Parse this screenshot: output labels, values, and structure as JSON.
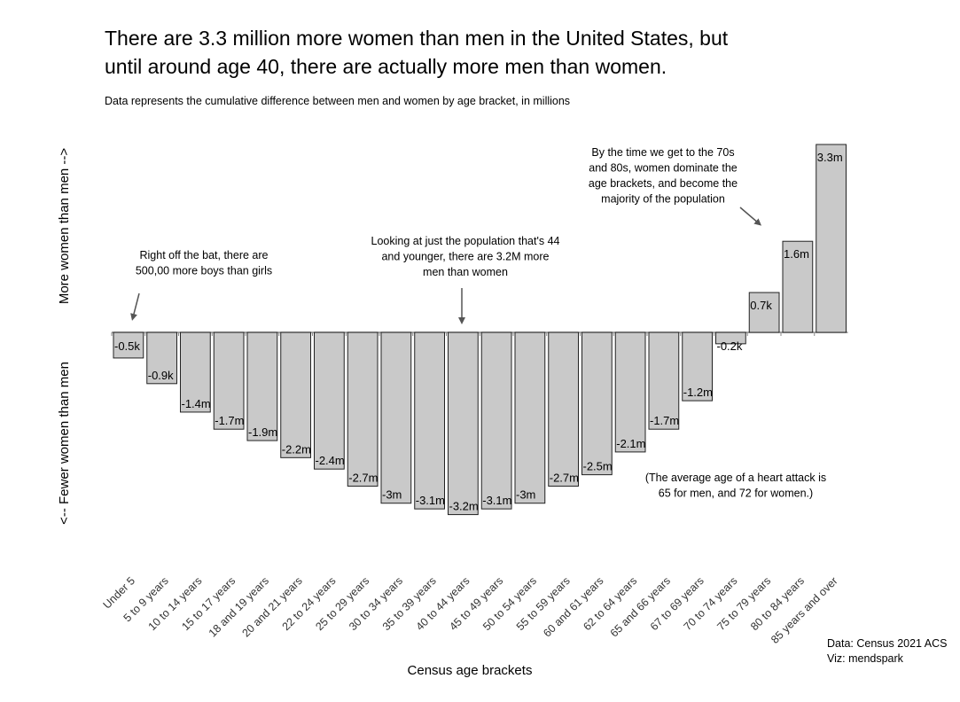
{
  "chart_data": {
    "type": "bar",
    "title_line1": "There are 3.3 million more women than men in the United States, but",
    "title_line2": "until around age 40, there are actually more men than women.",
    "subtitle": "Data represents the cumulative difference between men and women by age bracket, in millions",
    "xlabel": "Census age brackets",
    "ylabel_top": "More women than men -->",
    "ylabel_bottom": "<-- Fewer women than men",
    "ylim": [
      -3.3,
      3.3
    ],
    "grid": false,
    "bar_color": "#c9c9c9",
    "categories": [
      "Under 5",
      "5 to 9 years",
      "10 to 14 years",
      "15 to 17 years",
      "18 and 19 years",
      "20 and 21 years",
      "22 to 24 years",
      "25 to 29 years",
      "30 to 34 years",
      "35 to 39 years",
      "40 to 44 years",
      "45 to 49 years",
      "50 to 54 years",
      "55 to 59 years",
      "60 and 61 years",
      "62 to 64 years",
      "65 and 66 years",
      "67 to 69 years",
      "70 to 74 years",
      "75 to 79 years",
      "80 to 84 years",
      "85 years and over"
    ],
    "values": [
      -0.45,
      -0.9,
      -1.4,
      -1.7,
      -1.9,
      -2.2,
      -2.4,
      -2.7,
      -3.0,
      -3.1,
      -3.2,
      -3.1,
      -3.0,
      -2.7,
      -2.5,
      -2.1,
      -1.7,
      -1.2,
      -0.2,
      0.7,
      1.6,
      3.3
    ],
    "data_labels": [
      "-0.5k",
      "-0.9k",
      "-1.4m",
      "-1.7m",
      "-1.9m",
      "-2.2m",
      "-2.4m",
      "-2.7m",
      "-3m",
      "-3.1m",
      "-3.2m",
      "-3.1m",
      "-3m",
      "-2.7m",
      "-2.5m",
      "-2.1m",
      "-1.7m",
      "-1.2m",
      "-0.2k",
      "0.7k",
      "1.6m",
      "3.3m"
    ],
    "annotations": {
      "boys": [
        "Right off the bat, there are",
        "500,00 more boys than girls"
      ],
      "young": [
        "Looking at just the population that's 44",
        "and younger, there are 3.2M more",
        "men than women"
      ],
      "old": [
        "By the time we get to the 70s",
        "and 80s, women dominate the",
        "age brackets, and become the",
        "majority of the population"
      ],
      "heart": [
        "(The average age of a heart attack is",
        "65 for men, and 72 for women.)"
      ]
    },
    "source": [
      "Data: Census 2021 ACS",
      "Viz: mendspark"
    ]
  }
}
